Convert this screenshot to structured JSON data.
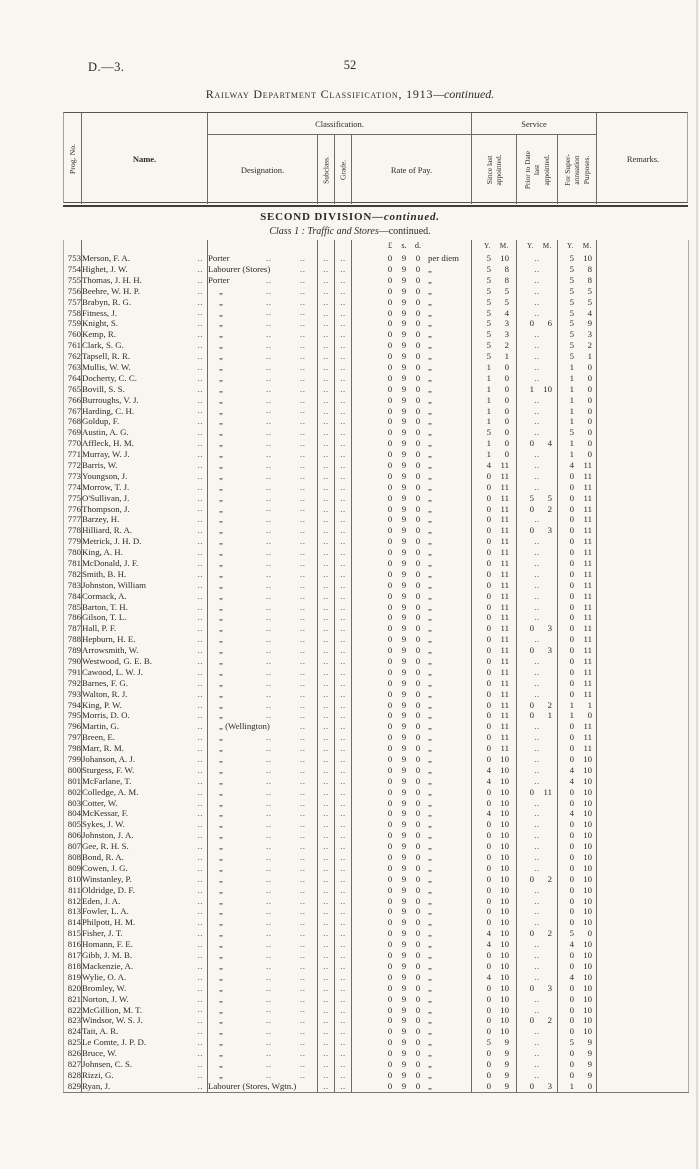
{
  "page": {
    "doc_ref": "D.—3.",
    "page_number": "52",
    "title": "Railway Department Classification, 1913",
    "title_suffix": "—continued."
  },
  "section": {
    "division": "SECOND DIVISION",
    "division_suffix": "—continued.",
    "class_label": "Class 1 :",
    "class_name": "Traffic and Stores",
    "class_suffix": "—continued."
  },
  "table": {
    "headers": {
      "prog_no": "Prog. No.",
      "name": "Name.",
      "classification": "Classification.",
      "designation": "Designation.",
      "subclass": "Subclass.",
      "grade": "Grade.",
      "rate_of_pay": "Rate of Pay.",
      "service": "Service",
      "since_last": "Since last\nappointed.",
      "prior_to": "Prior to Date\nlast\nappointed.",
      "for_super": "For Super-\nannuation\nPurposes.",
      "remarks": "Remarks."
    },
    "subheader": {
      "pounds": "£",
      "shillings": "s.",
      "pence": "d.",
      "ym_y": "Y.",
      "ym_m": "M."
    },
    "pay_rate": "0 9 0",
    "columns_legend": [
      "prog_no",
      "name",
      "designation",
      "pay_unit",
      "since_last_ym",
      "prior_to_date_ym",
      "superannuation_ym"
    ],
    "rows": [
      [
        "753",
        "Merson, F. A.",
        "Porter",
        "per diem",
        "5 10",
        "..",
        "5 10"
      ],
      [
        "754",
        "Highet, J. W.",
        "Labourer (Stores)",
        "„",
        "5 8",
        "..",
        "5 8"
      ],
      [
        "755",
        "Thomas, J. H. H.",
        "Porter",
        "„",
        "5 8",
        "..",
        "5 8"
      ],
      [
        "756",
        "Beehre, W. H. P.",
        "„",
        "„",
        "5 5",
        "..",
        "5 5"
      ],
      [
        "757",
        "Brabyn, R. G.",
        "„",
        "„",
        "5 5",
        "..",
        "5 5"
      ],
      [
        "758",
        "Fitness, J.",
        "„",
        "„",
        "5 4",
        "..",
        "5 4"
      ],
      [
        "759",
        "Knight, S.",
        "„",
        "„",
        "5 3",
        "0 6",
        "5 9"
      ],
      [
        "760",
        "Kemp, R.",
        "„",
        "„",
        "5 3",
        "..",
        "5 3"
      ],
      [
        "761",
        "Clark, S. G.",
        "„",
        "„",
        "5 2",
        "..",
        "5 2"
      ],
      [
        "762",
        "Tapsell, R. R.",
        "„",
        "„",
        "5 1",
        "..",
        "5 1"
      ],
      [
        "763",
        "Mullis, W. W.",
        "„",
        "„",
        "1 0",
        "..",
        "1 0"
      ],
      [
        "764",
        "Docherty, C. C.",
        "„",
        "„",
        "1 0",
        "..",
        "1 0"
      ],
      [
        "765",
        "Bovill, S. S.",
        "„",
        "„",
        "1 0",
        "1 10",
        "1 0"
      ],
      [
        "766",
        "Burroughs, V. J.",
        "„",
        "„",
        "1 0",
        "..",
        "1 0"
      ],
      [
        "767",
        "Harding, C. H.",
        "„",
        "„",
        "1 0",
        "..",
        "1 0"
      ],
      [
        "768",
        "Goldup, F.",
        "„",
        "„",
        "1 0",
        "..",
        "1 0"
      ],
      [
        "769",
        "Austin, A. G.",
        "„",
        "„",
        "5 0",
        "..",
        "5 0"
      ],
      [
        "770",
        "Affleck, H. M.",
        "„",
        "„",
        "1 0",
        "0 4",
        "1 0"
      ],
      [
        "771",
        "Murray, W. J.",
        "„",
        "„",
        "1 0",
        "..",
        "1 0"
      ],
      [
        "772",
        "Barris, W.",
        "„",
        "„",
        "4 11",
        "..",
        "4 11"
      ],
      [
        "773",
        "Youngson, J.",
        "„",
        "„",
        "0 11",
        "..",
        "0 11"
      ],
      [
        "774",
        "Morrow, T. J.",
        "„",
        "„",
        "0 11",
        "..",
        "0 11"
      ],
      [
        "775",
        "O'Sullivan, J.",
        "„",
        "„",
        "0 11",
        "5 5",
        "0 11"
      ],
      [
        "776",
        "Thompson, J.",
        "„",
        "„",
        "0 11",
        "0 2",
        "0 11"
      ],
      [
        "777",
        "Barzey, H.",
        "„",
        "„",
        "0 11",
        "..",
        "0 11"
      ],
      [
        "778",
        "Hilliard, R. A.",
        "„",
        "„",
        "0 11",
        "0 3",
        "0 11"
      ],
      [
        "779",
        "Metrick, J. H. D.",
        "„",
        "„",
        "0 11",
        "..",
        "0 11"
      ],
      [
        "780",
        "King, A. H.",
        "„",
        "„",
        "0 11",
        "..",
        "0 11"
      ],
      [
        "781",
        "McDonald, J. F.",
        "„",
        "„",
        "0 11",
        "..",
        "0 11"
      ],
      [
        "782",
        "Smith, B. H.",
        "„",
        "„",
        "0 11",
        "..",
        "0 11"
      ],
      [
        "783",
        "Johnston, William",
        "„",
        "„",
        "0 11",
        "..",
        "0 11"
      ],
      [
        "784",
        "Cormack, A.",
        "„",
        "„",
        "0 11",
        "..",
        "0 11"
      ],
      [
        "785",
        "Barton, T. H.",
        "„",
        "„",
        "0 11",
        "..",
        "0 11"
      ],
      [
        "786",
        "Gilson, T. L.",
        "„",
        "„",
        "0 11",
        "..",
        "0 11"
      ],
      [
        "787",
        "Hall, P. F.",
        "„",
        "„",
        "0 11",
        "0 3",
        "0 11"
      ],
      [
        "788",
        "Hepburn, H. E.",
        "„",
        "„",
        "0 11",
        "..",
        "0 11"
      ],
      [
        "789",
        "Arrowsmith, W.",
        "„",
        "„",
        "0 11",
        "0 3",
        "0 11"
      ],
      [
        "790",
        "Westwood, G. E. B.",
        "„",
        "„",
        "0 11",
        "..",
        "0 11"
      ],
      [
        "791",
        "Cawood, L. W. J.",
        "„",
        "„",
        "0 11",
        "..",
        "0 11"
      ],
      [
        "792",
        "Barnes, F. G.",
        "„",
        "„",
        "0 11",
        "..",
        "0 11"
      ],
      [
        "793",
        "Walton, R. J.",
        "„",
        "„",
        "0 11",
        "..",
        "0 11"
      ],
      [
        "794",
        "King, P. W.",
        "„",
        "„",
        "0 11",
        "0 2",
        "1 1"
      ],
      [
        "795",
        "Morris, D. O.",
        "„",
        "„",
        "0 11",
        "0 1",
        "1 0"
      ],
      [
        "796",
        "Martin, G.",
        "„ (Wellington)",
        "„",
        "0 11",
        "..",
        "0 11"
      ],
      [
        "797",
        "Breen, E.",
        "„",
        "„",
        "0 11",
        "..",
        "0 11"
      ],
      [
        "798",
        "Marr, R. M.",
        "„",
        "„",
        "0 11",
        "..",
        "0 11"
      ],
      [
        "799",
        "Johanson, A. J.",
        "„",
        "„",
        "0 10",
        "..",
        "0 10"
      ],
      [
        "800",
        "Sturgess, F. W.",
        "„",
        "„",
        "4 10",
        "..",
        "4 10"
      ],
      [
        "801",
        "McFarlane, T.",
        "„",
        "„",
        "4 10",
        "..",
        "4 10"
      ],
      [
        "802",
        "Colledge, A. M.",
        "„",
        "„",
        "0 10",
        "0 11",
        "0 10"
      ],
      [
        "803",
        "Cotter, W.",
        "„",
        "„",
        "0 10",
        "..",
        "0 10"
      ],
      [
        "804",
        "McKessar, F.",
        "„",
        "„",
        "4 10",
        "..",
        "4 10"
      ],
      [
        "805",
        "Sykes, J. W.",
        "„",
        "„",
        "0 10",
        "..",
        "0 10"
      ],
      [
        "806",
        "Johnston, J. A.",
        "„",
        "„",
        "0 10",
        "..",
        "0 10"
      ],
      [
        "807",
        "Gee, R. H. S.",
        "„",
        "„",
        "0 10",
        "..",
        "0 10"
      ],
      [
        "808",
        "Bond, R. A.",
        "„",
        "„",
        "0 10",
        "..",
        "0 10"
      ],
      [
        "809",
        "Cowen, J. G.",
        "„",
        "„",
        "0 10",
        "..",
        "0 10"
      ],
      [
        "810",
        "Winstanley, P.",
        "„",
        "„",
        "0 10",
        "0 2",
        "0 10"
      ],
      [
        "811",
        "Oldridge, D. F.",
        "„",
        "„",
        "0 10",
        "..",
        "0 10"
      ],
      [
        "812",
        "Eden, J. A.",
        "„",
        "„",
        "0 10",
        "..",
        "0 10"
      ],
      [
        "813",
        "Fowler, L. A.",
        "„",
        "„",
        "0 10",
        "..",
        "0 10"
      ],
      [
        "814",
        "Philpott, H. M.",
        "„",
        "„",
        "0 10",
        "..",
        "0 10"
      ],
      [
        "815",
        "Fisher, J. T.",
        "„",
        "„",
        "4 10",
        "0 2",
        "5 0"
      ],
      [
        "816",
        "Homann, F. E.",
        "„",
        "„",
        "4 10",
        "..",
        "4 10"
      ],
      [
        "817",
        "Gibb, J. M. B.",
        "„",
        "„",
        "0 10",
        "..",
        "0 10"
      ],
      [
        "818",
        "Mackenzie, A.",
        "„",
        "„",
        "0 10",
        "..",
        "0 10"
      ],
      [
        "819",
        "Wylie, O. A.",
        "„",
        "„",
        "4 10",
        "..",
        "4 10"
      ],
      [
        "820",
        "Bromley, W.",
        "„",
        "„",
        "0 10",
        "0 3",
        "0 10"
      ],
      [
        "821",
        "Norton, J. W.",
        "„",
        "„",
        "0 10",
        "..",
        "0 10"
      ],
      [
        "822",
        "McGillion, M. T.",
        "„",
        "„",
        "0 10",
        "..",
        "0 10"
      ],
      [
        "823",
        "Windsor, W. S. J.",
        "„",
        "„",
        "0 10",
        "0 2",
        "0 10"
      ],
      [
        "824",
        "Tait, A. R.",
        "„",
        "„",
        "0 10",
        "..",
        "0 10"
      ],
      [
        "825",
        "Le Comte, J. P. D.",
        "„",
        "„",
        "5 9",
        "..",
        "5 9"
      ],
      [
        "826",
        "Bruce, W.",
        "„",
        "„",
        "0 9",
        "..",
        "0 9"
      ],
      [
        "827",
        "Johnsen, C. S.",
        "„",
        "„",
        "0 9",
        "..",
        "0 9"
      ],
      [
        "828",
        "Rizzi, G.",
        "„",
        "„",
        "0 9",
        "..",
        "0 9"
      ],
      [
        "829",
        "Ryan, J.",
        "Labourer (Stores, Wgtn.)",
        "„",
        "0 9",
        "0 3",
        "1 0"
      ]
    ]
  }
}
